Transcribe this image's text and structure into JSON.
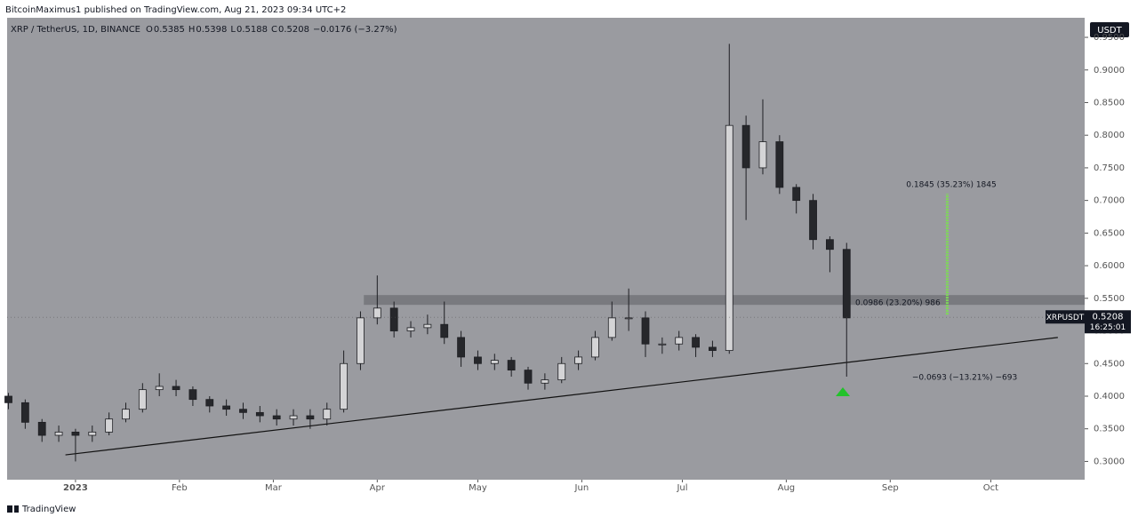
{
  "header": {
    "publisher": "BitcoinMaximus1 published on TradingView.com, Aug 21, 2023 09:34 UTC+2"
  },
  "legend": {
    "symbol": "XRP / TetherUS, 1D, BINANCE",
    "items": [
      {
        "label": "O",
        "value": "0.5385"
      },
      {
        "label": "H",
        "value": "0.5398"
      },
      {
        "label": "L",
        "value": "0.5188"
      },
      {
        "label": "C",
        "value": "0.5208"
      }
    ],
    "change": "−0.0176 (−3.27%)"
  },
  "chart_data": {
    "type": "candlestick",
    "currency": "USDT",
    "xlim": [
      -20.4,
      301
    ],
    "xticks": [
      {
        "value": 0,
        "label": "2023"
      },
      {
        "value": 31,
        "label": "Feb"
      },
      {
        "value": 59,
        "label": "Mar"
      },
      {
        "value": 90,
        "label": "Apr"
      },
      {
        "value": 120,
        "label": "May"
      },
      {
        "value": 151,
        "label": "Jun"
      },
      {
        "value": 181,
        "label": "Jul"
      },
      {
        "value": 212,
        "label": "Aug"
      },
      {
        "value": 243,
        "label": "Sep"
      },
      {
        "value": 273,
        "label": "Oct"
      }
    ],
    "ylim": [
      0.272,
      0.98
    ],
    "yticks": [
      {
        "value": 0.3,
        "label": "0.3000"
      },
      {
        "value": 0.35,
        "label": "0.3500"
      },
      {
        "value": 0.4,
        "label": "0.4000"
      },
      {
        "value": 0.45,
        "label": "0.4500"
      },
      {
        "value": 0.5,
        "label": "0.5000"
      },
      {
        "value": 0.55,
        "label": "0.5500"
      },
      {
        "value": 0.6,
        "label": "0.6000"
      },
      {
        "value": 0.65,
        "label": "0.6500"
      },
      {
        "value": 0.7,
        "label": "0.7000"
      },
      {
        "value": 0.75,
        "label": "0.7500"
      },
      {
        "value": 0.8,
        "label": "0.8000"
      },
      {
        "value": 0.85,
        "label": "0.8500"
      },
      {
        "value": 0.9,
        "label": "0.9000"
      },
      {
        "value": 0.95,
        "label": "0.9500"
      }
    ],
    "up_color": "#d4d4d6",
    "down_color": "#26272b",
    "x": [
      -20,
      -15,
      -10,
      -5,
      0,
      5,
      10,
      15,
      20,
      25,
      30,
      35,
      40,
      45,
      50,
      55,
      60,
      65,
      70,
      75,
      80,
      85,
      90,
      95,
      100,
      105,
      110,
      115,
      120,
      125,
      130,
      135,
      140,
      145,
      150,
      155,
      160,
      165,
      170,
      175,
      180,
      185,
      190,
      195,
      200,
      205,
      210,
      215,
      220,
      225,
      230
    ],
    "open": [
      0.4,
      0.39,
      0.36,
      0.34,
      0.345,
      0.34,
      0.345,
      0.365,
      0.38,
      0.41,
      0.415,
      0.41,
      0.395,
      0.385,
      0.38,
      0.375,
      0.37,
      0.365,
      0.37,
      0.365,
      0.38,
      0.45,
      0.52,
      0.535,
      0.5,
      0.505,
      0.51,
      0.49,
      0.46,
      0.45,
      0.455,
      0.44,
      0.42,
      0.425,
      0.45,
      0.46,
      0.49,
      0.52,
      0.52,
      0.48,
      0.48,
      0.49,
      0.475,
      0.47,
      0.815,
      0.75,
      0.79,
      0.72,
      0.7,
      0.64,
      0.625
    ],
    "high": [
      0.405,
      0.395,
      0.365,
      0.355,
      0.35,
      0.355,
      0.375,
      0.39,
      0.42,
      0.435,
      0.425,
      0.415,
      0.4,
      0.395,
      0.39,
      0.385,
      0.38,
      0.38,
      0.38,
      0.39,
      0.47,
      0.53,
      0.585,
      0.545,
      0.515,
      0.525,
      0.545,
      0.5,
      0.47,
      0.465,
      0.46,
      0.445,
      0.435,
      0.46,
      0.47,
      0.5,
      0.545,
      0.565,
      0.53,
      0.49,
      0.5,
      0.495,
      0.485,
      0.94,
      0.83,
      0.855,
      0.8,
      0.725,
      0.71,
      0.645,
      0.635
    ],
    "low": [
      0.38,
      0.35,
      0.33,
      0.33,
      0.3,
      0.33,
      0.34,
      0.36,
      0.375,
      0.4,
      0.4,
      0.385,
      0.375,
      0.37,
      0.365,
      0.36,
      0.355,
      0.355,
      0.35,
      0.355,
      0.375,
      0.44,
      0.51,
      0.49,
      0.49,
      0.495,
      0.48,
      0.445,
      0.44,
      0.44,
      0.43,
      0.41,
      0.41,
      0.42,
      0.44,
      0.455,
      0.485,
      0.5,
      0.46,
      0.465,
      0.47,
      0.46,
      0.46,
      0.465,
      0.67,
      0.74,
      0.71,
      0.68,
      0.625,
      0.59,
      0.43
    ],
    "close": [
      0.39,
      0.36,
      0.34,
      0.345,
      0.34,
      0.345,
      0.365,
      0.38,
      0.41,
      0.415,
      0.41,
      0.395,
      0.385,
      0.38,
      0.375,
      0.37,
      0.365,
      0.37,
      0.365,
      0.38,
      0.45,
      0.52,
      0.535,
      0.5,
      0.505,
      0.51,
      0.49,
      0.46,
      0.45,
      0.455,
      0.44,
      0.42,
      0.425,
      0.45,
      0.46,
      0.49,
      0.52,
      0.52,
      0.48,
      0.48,
      0.49,
      0.475,
      0.47,
      0.815,
      0.75,
      0.79,
      0.72,
      0.7,
      0.64,
      0.625,
      0.52
    ],
    "resistance_zone": {
      "x": [
        86,
        301
      ],
      "y": [
        0.54,
        0.555
      ]
    },
    "support_line": {
      "x": [
        -3,
        293
      ],
      "y": [
        0.31,
        0.49
      ]
    },
    "target_range": {
      "x": 260,
      "y": [
        0.525,
        0.71
      ]
    },
    "annotations": [
      "0.1845 (35.23%) 1845",
      "0.0986 (23.20%) 986",
      "−0.0693 (−13.21%) −693"
    ],
    "price_tag": {
      "symbol": "XRPUSDT",
      "price": 0.5208,
      "price_label": "0.5208",
      "countdown": "16:25:01"
    }
  },
  "footer": {
    "brand": "TradingView"
  }
}
